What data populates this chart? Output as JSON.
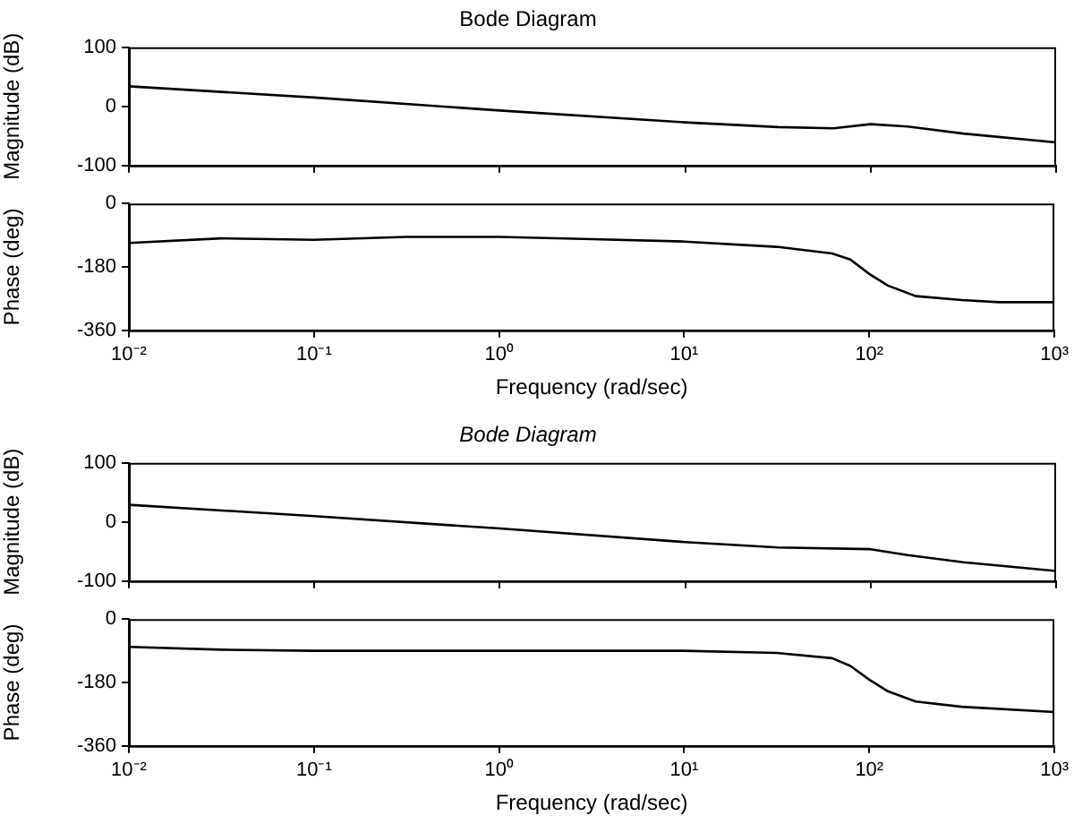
{
  "chart_data": [
    {
      "type": "line",
      "title": "Bode Diagram",
      "ylabel": "Magnitude (dB)",
      "log": "x",
      "tick_labels": "y",
      "xlim": [
        0.01,
        1000
      ],
      "ylim": [
        -100,
        100
      ],
      "yticks": [
        -100,
        0,
        100
      ],
      "xticks": [
        {
          "value": 0.01,
          "label": null
        },
        {
          "value": 0.1,
          "label": null
        },
        {
          "value": 1,
          "label": null
        },
        {
          "value": 10,
          "label": null
        },
        {
          "value": 100,
          "label": null
        },
        {
          "value": 1000,
          "label": null
        }
      ],
      "series": [
        {
          "color": "#000000",
          "x": [
            0.01,
            0.1,
            1,
            10,
            31.6,
            63,
            100,
            158,
            316,
            1000
          ],
          "values": [
            34,
            15,
            -7,
            -27,
            -35,
            -37,
            -30,
            -34,
            -46,
            -61
          ]
        }
      ]
    },
    {
      "type": "line",
      "xlabel": "Frequency (rad/sec)",
      "ylabel": "Phase (deg)",
      "log": "x",
      "xlim": [
        0.01,
        1000
      ],
      "ylim": [
        -360,
        0
      ],
      "yticks": [
        -360,
        -180,
        0
      ],
      "xticks": [
        {
          "value": 0.01,
          "label": "10⁻²"
        },
        {
          "value": 0.1,
          "label": "10⁻¹"
        },
        {
          "value": 1,
          "label": "10⁰"
        },
        {
          "value": 10,
          "label": "10¹"
        },
        {
          "value": 100,
          "label": "10²"
        },
        {
          "value": 1000,
          "label": "10³"
        }
      ],
      "series": [
        {
          "color": "#000000",
          "x": [
            0.01,
            0.0316,
            0.1,
            0.316,
            1,
            3.16,
            10,
            31.6,
            63,
            79,
            100,
            126,
            178,
            316,
            501,
            1000
          ],
          "values": [
            -112,
            -99,
            -103,
            -95,
            -95,
            -101,
            -108,
            -123,
            -142,
            -159,
            -200,
            -233,
            -263,
            -274,
            -280,
            -280
          ]
        }
      ]
    },
    {
      "type": "line",
      "title": "Bode Diagram",
      "ylabel": "Magnitude (dB)",
      "log": "x",
      "tick_labels": "y",
      "xlim": [
        0.01,
        1000
      ],
      "ylim": [
        -100,
        100
      ],
      "yticks": [
        -100,
        0,
        100
      ],
      "xticks": [
        {
          "value": 0.01,
          "label": null
        },
        {
          "value": 0.1,
          "label": null
        },
        {
          "value": 1,
          "label": null
        },
        {
          "value": 10,
          "label": null
        },
        {
          "value": 100,
          "label": null
        },
        {
          "value": 1000,
          "label": null
        }
      ],
      "series": [
        {
          "color": "#000000",
          "x": [
            0.01,
            0.1,
            1,
            10,
            31.6,
            100,
            158,
            316,
            1000
          ],
          "values": [
            29,
            10,
            -11,
            -34,
            -43,
            -46,
            -56,
            -68,
            -83
          ]
        }
      ]
    },
    {
      "type": "line",
      "xlabel": "Frequency (rad/sec)",
      "ylabel": "Phase (deg)",
      "log": "x",
      "xlim": [
        0.01,
        1000
      ],
      "ylim": [
        -360,
        0
      ],
      "yticks": [
        -360,
        -180,
        0
      ],
      "xticks": [
        {
          "value": 0.01,
          "label": "10⁻²"
        },
        {
          "value": 0.1,
          "label": "10⁻¹"
        },
        {
          "value": 1,
          "label": "10⁰"
        },
        {
          "value": 10,
          "label": "10¹"
        },
        {
          "value": 100,
          "label": "10²"
        },
        {
          "value": 1000,
          "label": "10³"
        }
      ],
      "series": [
        {
          "color": "#000000",
          "x": [
            0.01,
            0.0316,
            0.1,
            1,
            10,
            31.6,
            63,
            79,
            100,
            126,
            178,
            316,
            1000
          ],
          "values": [
            -79,
            -87,
            -90,
            -90,
            -90,
            -96,
            -111,
            -133,
            -172,
            -205,
            -234,
            -249,
            -264
          ]
        }
      ]
    }
  ]
}
